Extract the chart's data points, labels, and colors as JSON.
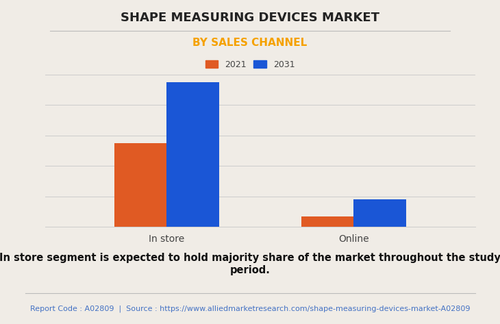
{
  "title": "SHAPE MEASURING DEVICES MARKET",
  "subtitle": "BY SALES CHANNEL",
  "categories": [
    "In store",
    "Online"
  ],
  "series": [
    {
      "label": "2021",
      "color": "#e05a23",
      "values": [
        55,
        7
      ]
    },
    {
      "label": "2031",
      "color": "#1a56d6",
      "values": [
        95,
        18
      ]
    }
  ],
  "ylim": [
    0,
    100
  ],
  "background_color": "#f0ece6",
  "title_fontsize": 13,
  "subtitle_fontsize": 11,
  "subtitle_color": "#f5a100",
  "legend_fontsize": 9,
  "axis_label_fontsize": 10,
  "annotation_text": "In store segment is expected to hold majority share of the market throughout the study\nperiod.",
  "footer_text": "Report Code : A02809  |  Source : https://www.alliedmarketresearch.com/shape-measuring-devices-market-A02809",
  "footer_color": "#4472c4",
  "annotation_fontsize": 10.5,
  "footer_fontsize": 8,
  "bar_width": 0.28,
  "grid_color": "#cccccc"
}
